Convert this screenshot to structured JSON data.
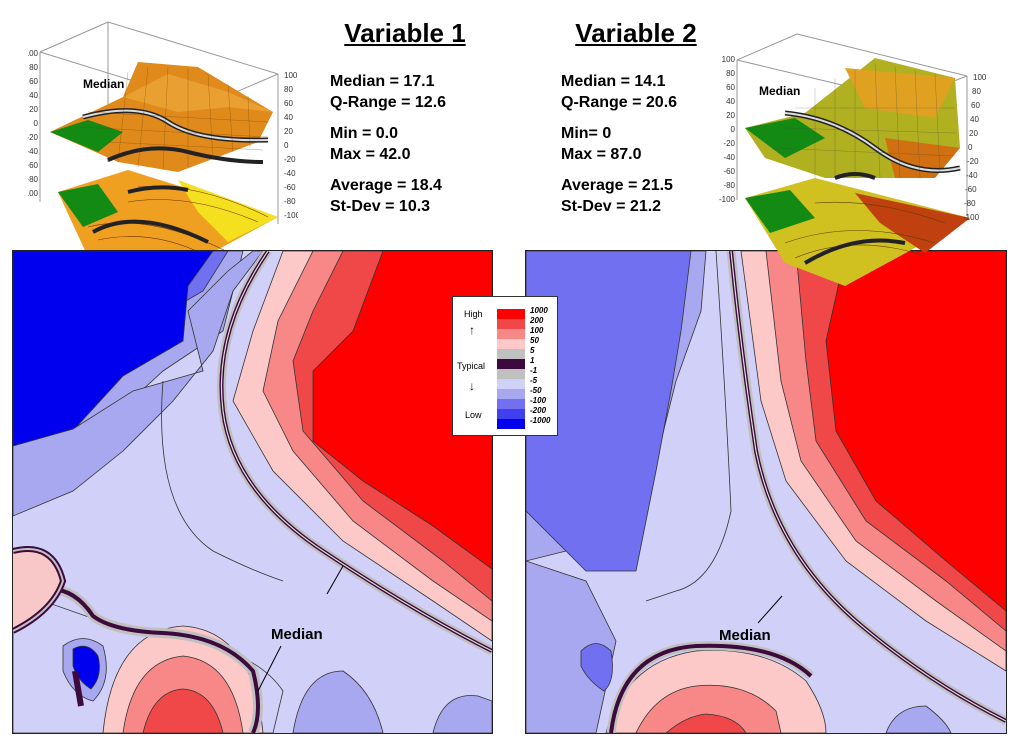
{
  "colors": {
    "high_red": "#ff0000",
    "mid_red": "#ee4444",
    "light_red": "#f88080",
    "pale_pink": "#fcc8c8",
    "gray_band": "#c0c0c0",
    "dark_median": "#3c0a3c",
    "pale_blue": "#d0d0f8",
    "light_blue": "#a8a8f0",
    "mid_blue": "#7070f0",
    "blue": "#4040f0",
    "deep_blue": "#0000ee",
    "surface_green": "#118811",
    "surface_orange": "#e89020"
  },
  "variable1": {
    "title": "Variable 1",
    "median": "Median = 17.1",
    "qrange": "Q-Range = 12.6",
    "min": "Min = 0.0",
    "max": "Max = 42.0",
    "average": "Average = 18.4",
    "stdev": "St-Dev = 10.3"
  },
  "variable2": {
    "title": "Variable 2",
    "median": "Median = 14.1",
    "qrange": "Q-Range = 20.6",
    "min": "Min= 0",
    "max": "Max = 87.0",
    "average": "Average = 21.5",
    "stdev": "St-Dev = 21.2"
  },
  "thumb1": {
    "label": "Median",
    "axis_left": [
      "100",
      "80",
      "60",
      "40",
      "20",
      "0",
      "-20",
      "-40",
      "-60",
      "-80",
      "-100"
    ],
    "axis_right": [
      "100",
      "80",
      "60",
      "40",
      "20",
      "0",
      "-20",
      "-40",
      "-60",
      "-80",
      "-100"
    ]
  },
  "thumb2": {
    "label": "Median",
    "axis_left": [
      "100",
      "80",
      "60",
      "40",
      "20",
      "0",
      "-20",
      "-40",
      "-60",
      "-80",
      "-100"
    ],
    "axis_right": [
      "100",
      "80",
      "60",
      "40",
      "20",
      "0",
      "-20",
      "-40",
      "-60",
      "-80",
      "-100"
    ]
  },
  "map1": {
    "median_label": "Median"
  },
  "map2": {
    "median_label": "Median"
  },
  "legend": {
    "high": "High",
    "typical": "Typical",
    "low": "Low",
    "levels": [
      {
        "value": "1000",
        "color": "#ff0000"
      },
      {
        "value": "200",
        "color": "#f04848"
      },
      {
        "value": "100",
        "color": "#f88888"
      },
      {
        "value": "50",
        "color": "#fcc8c8"
      },
      {
        "value": "5",
        "color": "#c0c0c0"
      },
      {
        "value": "1",
        "color": "#3c0a3c"
      },
      {
        "value": "-1",
        "color": "#c0c0c0"
      },
      {
        "value": "-5",
        "color": "#d0d0f8"
      },
      {
        "value": "-50",
        "color": "#a8a8f0"
      },
      {
        "value": "-100",
        "color": "#7070f0"
      },
      {
        "value": "-200",
        "color": "#4040f0"
      },
      {
        "value": "-1000",
        "color": "#0000ee"
      }
    ]
  }
}
